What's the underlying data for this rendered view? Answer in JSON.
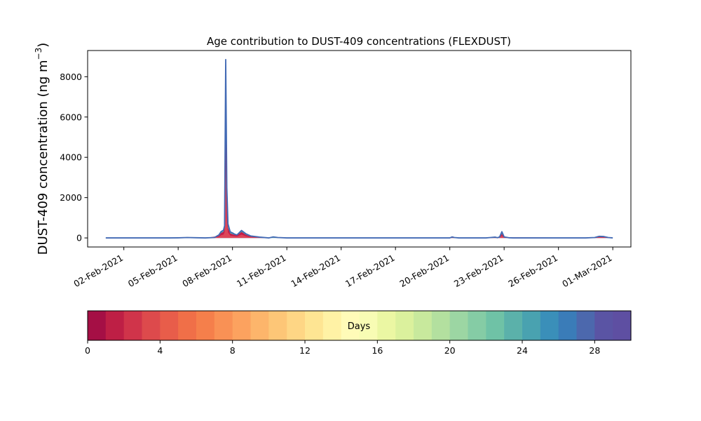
{
  "chart_data": {
    "type": "area",
    "title": "Age contribution to DUST-409 concentrations (FLEXDUST)",
    "ylabel_main": "DUST-409 concentration (ng m",
    "ylabel_sup": "−3",
    "ylabel_close": ")",
    "xlabel": "",
    "xlim": [
      "2021-01-31T00:00",
      "2021-03-02T00:00"
    ],
    "ylim": [
      -450,
      9300
    ],
    "x_ticks": [
      "2021-02-02",
      "2021-02-05",
      "2021-02-08",
      "2021-02-11",
      "2021-02-14",
      "2021-02-17",
      "2021-02-20",
      "2021-02-23",
      "2021-02-26",
      "2021-03-01"
    ],
    "x_tick_labels": [
      "02-Feb-2021",
      "05-Feb-2021",
      "08-Feb-2021",
      "11-Feb-2021",
      "14-Feb-2021",
      "17-Feb-2021",
      "20-Feb-2021",
      "23-Feb-2021",
      "26-Feb-2021",
      "01-Mar-2021"
    ],
    "y_ticks": [
      0,
      2000,
      4000,
      6000,
      8000
    ],
    "y_tick_labels": [
      "0",
      "2000",
      "4000",
      "6000",
      "8000"
    ],
    "grid": false,
    "series_note": "stacked contributions by particle age, 0–30 days",
    "total": {
      "x": [
        "2021-02-01T00:00",
        "2021-02-03T00:00",
        "2021-02-04T12:00",
        "2021-02-05T00:00",
        "2021-02-05T12:00",
        "2021-02-06T00:00",
        "2021-02-06T12:00",
        "2021-02-07T00:00",
        "2021-02-07T06:00",
        "2021-02-07T09:00",
        "2021-02-07T12:00",
        "2021-02-07T13:30",
        "2021-02-07T15:00",
        "2021-02-07T16:30",
        "2021-02-07T18:00",
        "2021-02-07T21:00",
        "2021-02-08T00:00",
        "2021-02-08T03:00",
        "2021-02-08T06:00",
        "2021-02-08T12:00",
        "2021-02-08T18:00",
        "2021-02-09T00:00",
        "2021-02-09T12:00",
        "2021-02-10T00:00",
        "2021-02-10T06:00",
        "2021-02-10T12:00",
        "2021-02-11T00:00",
        "2021-02-15T00:00",
        "2021-02-19T00:00",
        "2021-02-20T00:00",
        "2021-02-20T03:00",
        "2021-02-20T06:00",
        "2021-02-20T12:00",
        "2021-02-21T12:00",
        "2021-02-22T00:00",
        "2021-02-22T06:00",
        "2021-02-22T12:00",
        "2021-02-22T15:00",
        "2021-02-22T18:00",
        "2021-02-22T21:00",
        "2021-02-23T00:00",
        "2021-02-23T06:00",
        "2021-02-23T12:00",
        "2021-02-24T00:00",
        "2021-02-26T00:00",
        "2021-02-27T12:00",
        "2021-02-28T00:00",
        "2021-02-28T06:00",
        "2021-02-28T12:00",
        "2021-02-28T18:00",
        "2021-03-01T00:00"
      ],
      "y": [
        0,
        0,
        0,
        5,
        20,
        10,
        0,
        20,
        150,
        320,
        380,
        600,
        8850,
        2500,
        700,
        300,
        250,
        180,
        150,
        370,
        200,
        100,
        40,
        0,
        50,
        20,
        0,
        0,
        0,
        0,
        50,
        20,
        0,
        0,
        0,
        20,
        40,
        10,
        50,
        310,
        50,
        10,
        0,
        0,
        0,
        0,
        20,
        80,
        70,
        20,
        0
      ]
    },
    "young_age": {
      "x": [
        "2021-02-01T00:00",
        "2021-02-06T12:00",
        "2021-02-07T06:00",
        "2021-02-07T09:00",
        "2021-02-07T12:00",
        "2021-02-07T13:30",
        "2021-02-07T15:00",
        "2021-02-07T16:30",
        "2021-02-07T18:00",
        "2021-02-07T21:00",
        "2021-02-08T00:00",
        "2021-02-08T06:00",
        "2021-02-08T12:00",
        "2021-02-08T18:00",
        "2021-02-09T00:00",
        "2021-02-09T12:00",
        "2021-02-10T00:00",
        "2021-02-22T18:00",
        "2021-02-22T21:00",
        "2021-02-23T00:00",
        "2021-02-28T00:00",
        "2021-02-28T06:00",
        "2021-02-28T12:00",
        "2021-03-01T00:00"
      ],
      "y": [
        0,
        0,
        100,
        250,
        300,
        500,
        6500,
        1800,
        500,
        220,
        180,
        120,
        300,
        150,
        70,
        20,
        0,
        20,
        200,
        30,
        10,
        50,
        40,
        0
      ]
    },
    "colorbar": {
      "label": "Days",
      "min": 0,
      "max": 30,
      "ticks": [
        0,
        4,
        8,
        12,
        16,
        20,
        24,
        28
      ],
      "tick_labels": [
        "0",
        "4",
        "8",
        "12",
        "16",
        "20",
        "24",
        "28"
      ],
      "colors": [
        "#a50f45",
        "#be1f45",
        "#d0344a",
        "#dd4a4c",
        "#e85d4a",
        "#f06f48",
        "#f57f4b",
        "#f99155",
        "#fca25f",
        "#fdb56b",
        "#fdc677",
        "#fed685",
        "#fee593",
        "#fff2a5",
        "#fffbb8",
        "#f8fcb4",
        "#ebf7a3",
        "#dbf19d",
        "#c8e99d",
        "#b3e09f",
        "#9cd6a3",
        "#85cca5",
        "#6fc2a6",
        "#5bb1aa",
        "#49a2b0",
        "#3a8fb9",
        "#3a7cb8",
        "#4c68ad",
        "#5a54a4",
        "#5e4fa2"
      ]
    },
    "colors": {
      "outline": "#4169b4",
      "stack_high": "#3a7cb8",
      "stack_mid": "#5bb1aa",
      "stack_low": "#c51b4a",
      "stack_peak": "#e04c5a"
    }
  }
}
